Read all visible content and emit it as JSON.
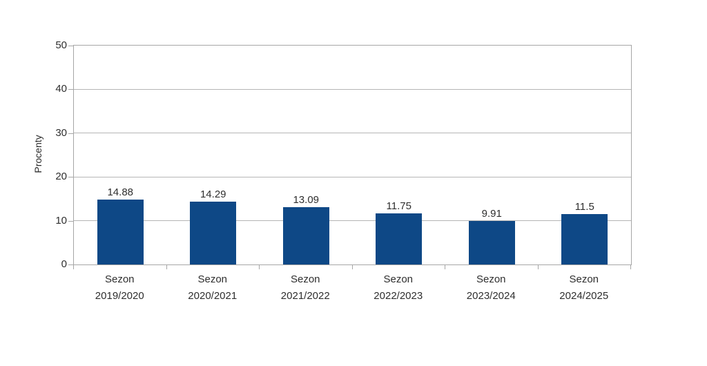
{
  "chart_data": {
    "type": "bar",
    "ylabel": "Procenty",
    "xlabel": "",
    "categories": [
      "Sezon 2019/2020",
      "Sezon 2020/2021",
      "Sezon 2021/2022",
      "Sezon 2022/2023",
      "Sezon 2023/2024",
      "Sezon 2024/2025"
    ],
    "values": [
      14.88,
      14.29,
      13.09,
      11.75,
      9.91,
      11.5
    ],
    "value_labels": [
      "14.88",
      "14.29",
      "13.09",
      "11.75",
      "9.91",
      "11.5"
    ],
    "ylim": [
      0,
      50
    ],
    "yticks": [
      0,
      10,
      20,
      30,
      40,
      50
    ],
    "grid": true,
    "legend": "none",
    "colors": {
      "bar": "#0e4886",
      "axis": "#a6a6a6",
      "gridline": "#b5b5b5",
      "text": "#2e2e2e",
      "background": "#ffffff"
    }
  }
}
